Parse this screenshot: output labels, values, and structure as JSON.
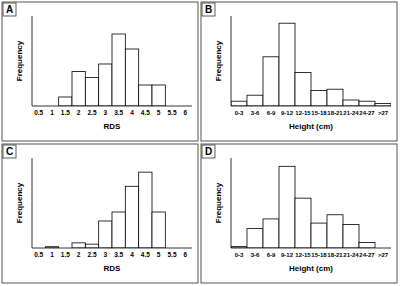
{
  "chart_data": [
    {
      "type": "bar",
      "title": "A",
      "x_label": "RDS",
      "y_label": "Frequency",
      "categories": [
        "0.5",
        "1",
        "1.5",
        "2",
        "2.5",
        "3",
        "3.5",
        "4",
        "4.5",
        "5",
        "5.5",
        "6"
      ],
      "values": [
        0,
        0,
        6,
        23,
        19,
        28,
        48,
        38,
        14,
        14,
        0,
        0
      ],
      "color": "#ffffff",
      "ylim": [
        0,
        60
      ],
      "tick_labels": "x"
    },
    {
      "type": "bar",
      "title": "B",
      "x_label": "Height (cm)",
      "y_label": "Frequency",
      "categories": [
        "0-3",
        "3-6",
        "6-9",
        "9-12",
        "12-15",
        "15-18",
        "18-21",
        "21-24",
        "24-27",
        ">27"
      ],
      "values": [
        4,
        9,
        41,
        69,
        28,
        13,
        14,
        5,
        4,
        2
      ],
      "color": "#ffffff",
      "ylim": [
        0,
        75
      ],
      "tick_labels": "x"
    },
    {
      "type": "bar",
      "title": "C",
      "x_label": "RDS",
      "y_label": "Frequency",
      "categories": [
        "0.5",
        "1",
        "1.5",
        "2",
        "2.5",
        "3",
        "3.5",
        "4",
        "4.5",
        "5",
        "5.5",
        "6"
      ],
      "values": [
        0,
        1,
        0,
        4,
        3,
        21,
        28,
        48,
        59,
        28,
        0,
        0
      ],
      "color": "#ffffff",
      "ylim": [
        0,
        70
      ],
      "tick_labels": "x"
    },
    {
      "type": "bar",
      "title": "D",
      "x_label": "Height (cm)",
      "y_label": "Frequency",
      "categories": [
        "0-3",
        "3-6",
        "6-9",
        "9-12",
        "12-15",
        "15-18",
        "18-21",
        "21-24",
        "24-27",
        ">27"
      ],
      "values": [
        1,
        14,
        21,
        59,
        36,
        18,
        24,
        17,
        4,
        0
      ],
      "color": "#ffffff",
      "ylim": [
        0,
        65
      ],
      "tick_labels": "x"
    }
  ]
}
